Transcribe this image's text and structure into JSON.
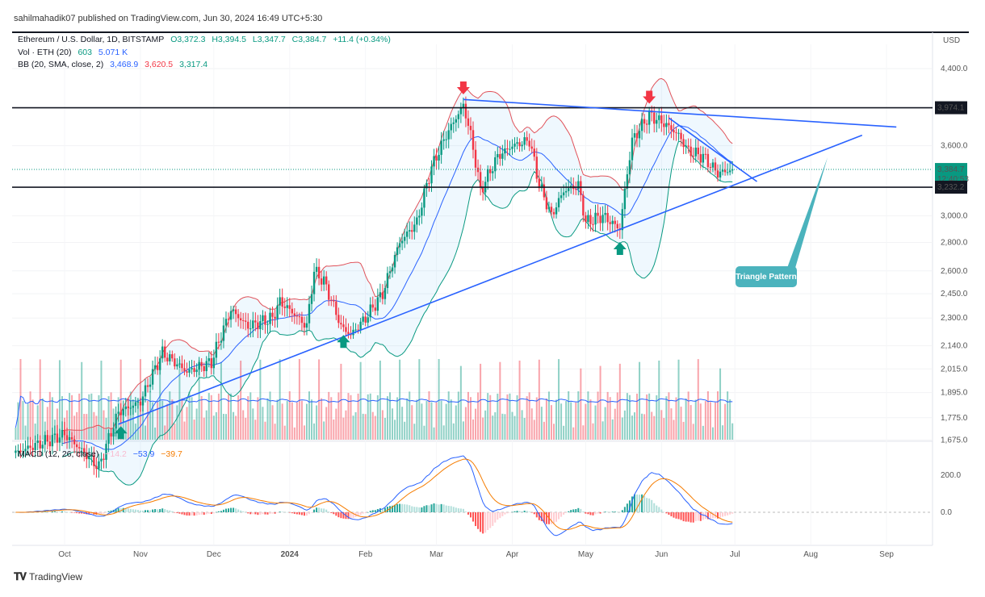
{
  "publisher_line": "sahilmahadik07 published on TradingView.com, Jun 30, 2024 16:49 UTC+5:30",
  "legend": {
    "symbol": "Ethereum / U.S. Dollar, 1D, BITSTAMP",
    "open": "O3,372.3",
    "high": "H3,394.5",
    "low": "L3,347.7",
    "close": "C3,384.7",
    "change": "+11.4 (+0.34%)",
    "vol_label": "Vol · ETH (20)",
    "vol_value": "603",
    "vol_ma": "5.071 K",
    "bb_label": "BB (20, SMA, close, 2)",
    "bb_basis": "3,468.9",
    "bb_upper": "3,620.5",
    "bb_lower": "3,317.4",
    "macd_label": "MACD (12, 26, close)",
    "macd_hist": "−14.2",
    "macd_line": "−53.9",
    "macd_signal": "−39.7"
  },
  "price_axis": {
    "currency": "USD",
    "ticks": [
      "4,400.0",
      "3,600.0",
      "3,000.0",
      "2,800.0",
      "2,600.0",
      "2,450.0",
      "2,300.0",
      "2,140.0",
      "2,015.0",
      "1,895.0",
      "1,775.0",
      "1,675.0"
    ],
    "tick_values": [
      4400,
      3600,
      3000,
      2800,
      2600,
      2450,
      2300,
      2140,
      2015,
      1895,
      1775,
      1675
    ],
    "labels": {
      "resistance": "3,974.1",
      "current": "3,384.7",
      "countdown": "12:40:53",
      "support": "3,232.2"
    },
    "scale": "log"
  },
  "macd_axis": {
    "ticks": [
      "200.0",
      "0.0"
    ]
  },
  "time_axis": {
    "ticks": [
      "Oct",
      "Nov",
      "Dec",
      "2024",
      "Feb",
      "Mar",
      "Apr",
      "May",
      "Jun",
      "Jul",
      "Aug",
      "Sep"
    ],
    "tick_dates": [
      "2023-10-01",
      "2023-11-01",
      "2023-12-01",
      "2024-01-01",
      "2024-02-01",
      "2024-03-01",
      "2024-04-01",
      "2024-05-01",
      "2024-06-01",
      "2024-07-01",
      "2024-08-01",
      "2024-09-01"
    ]
  },
  "annotation": {
    "callout": "Triangle Pattern"
  },
  "colors": {
    "up": "#089981",
    "down": "#f23645",
    "trendline": "#2962ff",
    "bb_upper": "#e0525a",
    "bb_basis": "#2962ff",
    "bb_lower": "#089981",
    "macd": "#2962ff",
    "signal": "#f57c00",
    "callout": "#4bb3bd"
  },
  "footer": {
    "brand": "TradingView"
  },
  "chart_data": {
    "type": "candlestick",
    "title": "Ethereum / U.S. Dollar, 1D, BITSTAMP",
    "ylim": [
      1675,
      4400
    ],
    "x_range": [
      "2023-09-11",
      "2024-09-20"
    ],
    "approx_close_path": [
      [
        "2023-09-11",
        1620
      ],
      [
        "2023-10-01",
        1700
      ],
      [
        "2023-10-15",
        1560
      ],
      [
        "2023-10-23",
        1800
      ],
      [
        "2023-11-01",
        1850
      ],
      [
        "2023-11-10",
        2100
      ],
      [
        "2023-11-20",
        2000
      ],
      [
        "2023-11-30",
        2050
      ],
      [
        "2023-12-08",
        2350
      ],
      [
        "2023-12-15",
        2250
      ],
      [
        "2023-12-25",
        2300
      ],
      [
        "2023-12-28",
        2400
      ],
      [
        "2024-01-01",
        2350
      ],
      [
        "2024-01-08",
        2250
      ],
      [
        "2024-01-11",
        2600
      ],
      [
        "2024-01-15",
        2530
      ],
      [
        "2024-01-22",
        2250
      ],
      [
        "2024-01-26",
        2200
      ],
      [
        "2024-02-01",
        2300
      ],
      [
        "2024-02-08",
        2450
      ],
      [
        "2024-02-15",
        2800
      ],
      [
        "2024-02-22",
        2950
      ],
      [
        "2024-02-28",
        3400
      ],
      [
        "2024-03-05",
        3700
      ],
      [
        "2024-03-12",
        4000
      ],
      [
        "2024-03-15",
        3700
      ],
      [
        "2024-03-19",
        3200
      ],
      [
        "2024-03-26",
        3500
      ],
      [
        "2024-04-01",
        3600
      ],
      [
        "2024-04-08",
        3650
      ],
      [
        "2024-04-12",
        3250
      ],
      [
        "2024-04-17",
        3000
      ],
      [
        "2024-04-22",
        3200
      ],
      [
        "2024-04-28",
        3250
      ],
      [
        "2024-05-01",
        2950
      ],
      [
        "2024-05-08",
        3000
      ],
      [
        "2024-05-15",
        2900
      ],
      [
        "2024-05-20",
        3650
      ],
      [
        "2024-05-27",
        3900
      ],
      [
        "2024-06-03",
        3800
      ],
      [
        "2024-06-08",
        3700
      ],
      [
        "2024-06-12",
        3550
      ],
      [
        "2024-06-18",
        3500
      ],
      [
        "2024-06-24",
        3350
      ],
      [
        "2024-06-30",
        3384.7
      ]
    ],
    "horizontal_levels": [
      3974.1,
      3232.2
    ],
    "trendlines": [
      {
        "name": "rising support",
        "from": [
          "2023-10-23",
          1745
        ],
        "to": [
          "2024-08-22",
          3700
        ]
      },
      {
        "name": "falling resistance",
        "from": [
          "2024-03-12",
          4060
        ],
        "to": [
          "2024-09-05",
          3780
        ]
      },
      {
        "name": "short falling",
        "from": [
          "2024-06-04",
          3870
        ],
        "to": [
          "2024-07-10",
          3280
        ]
      }
    ],
    "markers": [
      {
        "type": "sell-arrow",
        "date": "2024-03-12"
      },
      {
        "type": "sell-arrow",
        "date": "2024-05-27"
      },
      {
        "type": "buy-arrow",
        "date": "2023-10-24"
      },
      {
        "type": "buy-arrow",
        "date": "2024-01-23"
      },
      {
        "type": "buy-arrow",
        "date": "2024-05-15"
      }
    ]
  }
}
